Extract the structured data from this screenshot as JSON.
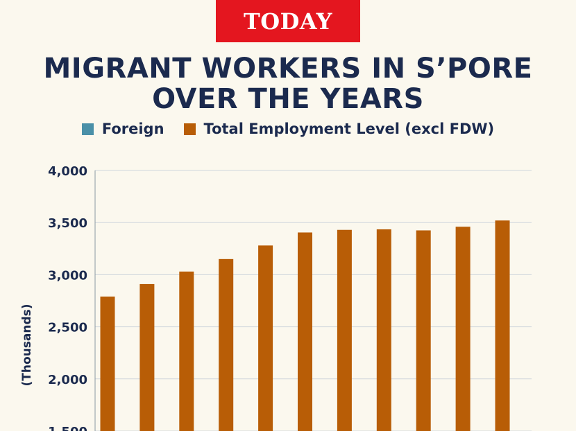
{
  "header": {
    "logo_text": "TODAY",
    "logo_color": "#e4161f"
  },
  "title_line1": "MIGRANT WORKERS IN S’PORE",
  "title_line2": "OVER THE YEARS",
  "chart_data": {
    "type": "bar",
    "title": "MIGRANT WORKERS IN S’PORE OVER THE YEARS",
    "xlabel": "",
    "ylabel": "(Thousands)",
    "ylim": [
      1500,
      4000
    ],
    "yticks": [
      1500,
      2000,
      2500,
      3000,
      3500,
      4000
    ],
    "ytick_labels": [
      "1,500",
      "2,000",
      "2,500",
      "3,000",
      "3,500",
      "4,000"
    ],
    "grid": true,
    "legend_position": "top-center",
    "legend": [
      {
        "name": "Foreign",
        "color": "#4a90a8"
      },
      {
        "name": "Total Employment Level (excl FDW)",
        "color": "#b85d06"
      }
    ],
    "series": [
      {
        "name": "Total Employment Level (excl FDW)",
        "color": "#b85d06",
        "values": [
          2790,
          2910,
          3030,
          3150,
          3280,
          3405,
          3430,
          3435,
          3425,
          3460,
          3520
        ]
      }
    ]
  }
}
